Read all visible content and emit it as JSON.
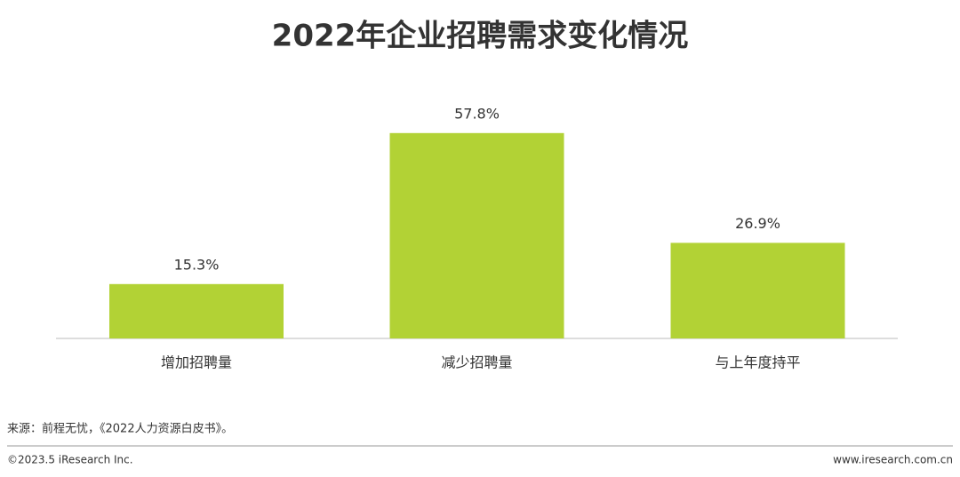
{
  "chart_data": {
    "type": "bar",
    "title": "2022年企业招聘需求变化情况",
    "categories": [
      "增加招聘量",
      "减少招聘量",
      "与上年度持平"
    ],
    "values": [
      15.3,
      57.8,
      26.9
    ],
    "value_labels": [
      "15.3%",
      "57.8%",
      "26.9%"
    ],
    "color": "#b2d235",
    "source": "来源：前程无忧，《2022人力资源白皮书》。",
    "copyright": "©2023.5 iResearch Inc.",
    "website": "www.iresearch.com.cn"
  }
}
